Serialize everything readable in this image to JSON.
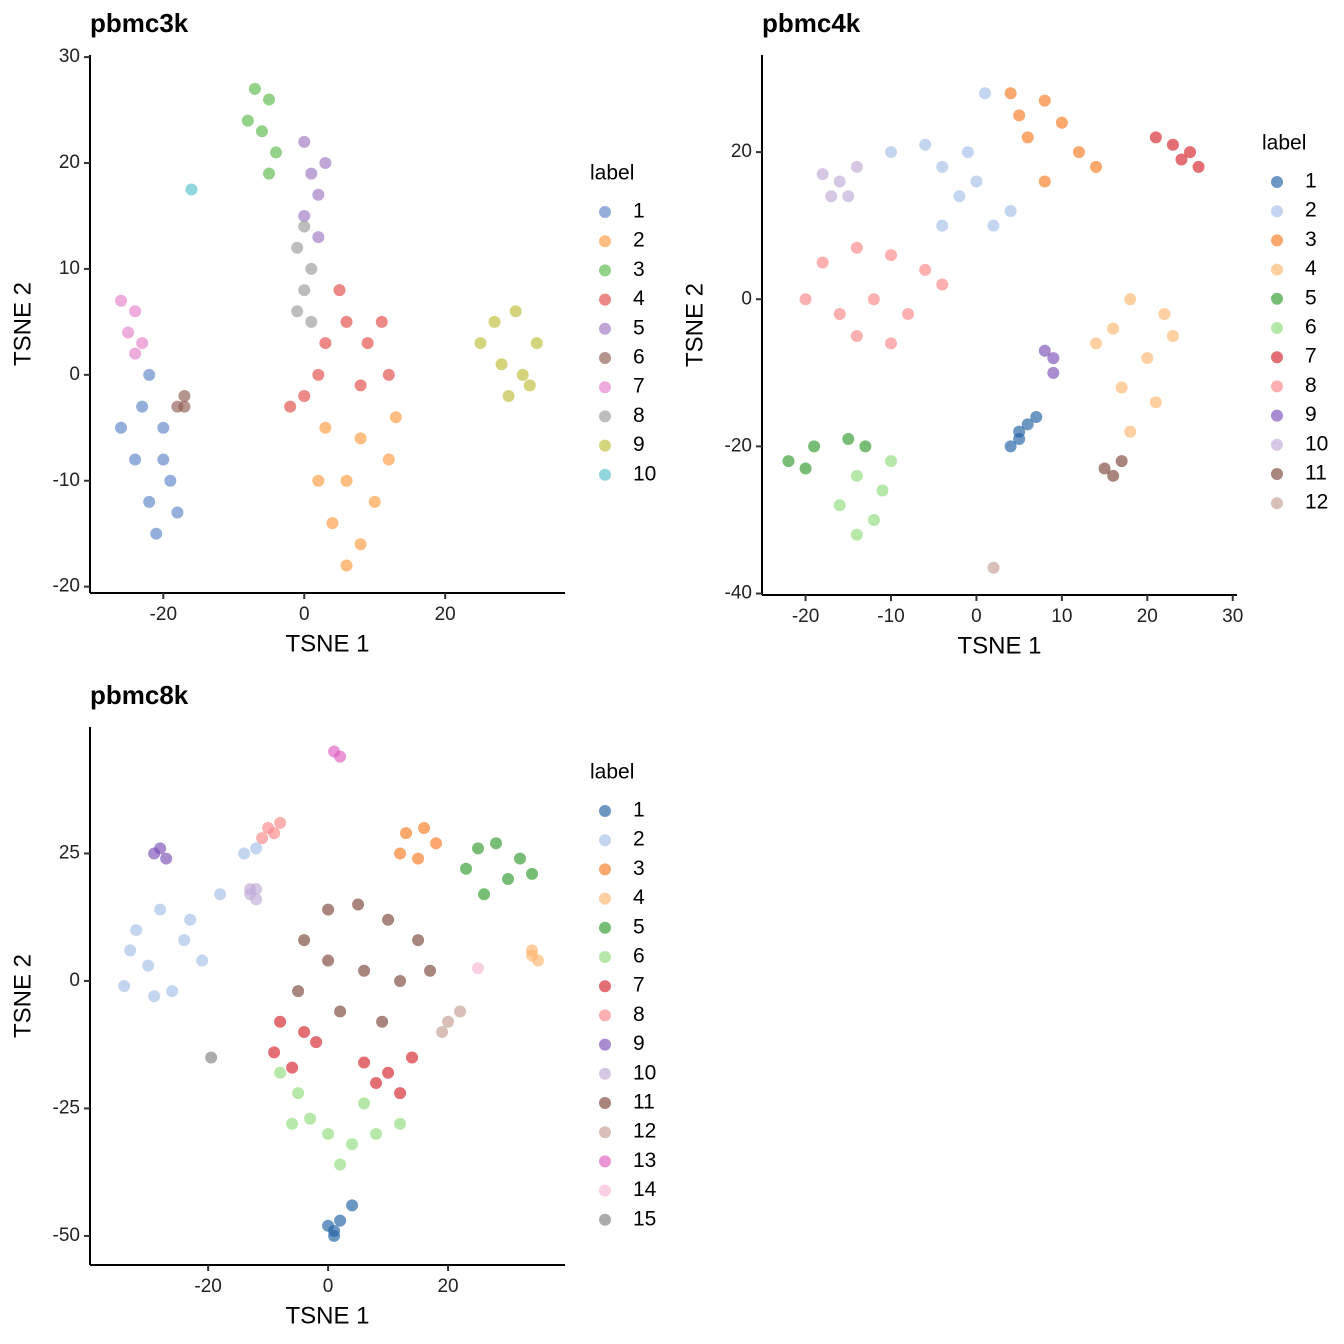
{
  "chart_data": [
    {
      "type": "scatter",
      "title": "pbmc3k",
      "x_label": "TSNE 1",
      "y_label": "TSNE 2",
      "legend_title": "label",
      "xlim": [
        -30.4,
        37.0
      ],
      "ylim": [
        -20.6,
        30.2
      ],
      "xticks": [
        -20,
        0,
        20
      ],
      "yticks": [
        -20,
        -10,
        0,
        10,
        20,
        30
      ],
      "series": [
        {
          "name": "1",
          "color": "#5b84c4",
          "x": [
            -22,
            -23,
            -20,
            -24,
            -19,
            -22,
            -21,
            -18,
            -26,
            -20
          ],
          "y": [
            0,
            -3,
            -5,
            -8,
            -10,
            -12,
            -15,
            -13,
            -5,
            -8
          ]
        },
        {
          "name": "2",
          "color": "#fe9a3e",
          "x": [
            3,
            8,
            12,
            2,
            6,
            10,
            4,
            8,
            6,
            13
          ],
          "y": [
            -5,
            -6,
            -8,
            -10,
            -10,
            -12,
            -14,
            -16,
            -18,
            -4
          ]
        },
        {
          "name": "3",
          "color": "#5bb84a",
          "x": [
            -7,
            -5,
            -8,
            -6,
            -4,
            -5
          ],
          "y": [
            27,
            26,
            24,
            23,
            21,
            19
          ]
        },
        {
          "name": "4",
          "color": "#e24a46",
          "x": [
            0,
            3,
            6,
            9,
            12,
            2,
            8,
            5,
            -2,
            11
          ],
          "y": [
            -2,
            3,
            5,
            3,
            0,
            0,
            -1,
            8,
            -3,
            5
          ]
        },
        {
          "name": "5",
          "color": "#9e77c2",
          "x": [
            0,
            1,
            2,
            0,
            2,
            3
          ],
          "y": [
            22,
            19,
            17,
            15,
            13,
            20
          ]
        },
        {
          "name": "6",
          "color": "#8d5c52",
          "x": [
            -17,
            -17,
            -18
          ],
          "y": [
            -3,
            -2,
            -3
          ]
        },
        {
          "name": "7",
          "color": "#e47fc9",
          "x": [
            -26,
            -24,
            -25,
            -23,
            -24
          ],
          "y": [
            7,
            6,
            4,
            3,
            2
          ]
        },
        {
          "name": "8",
          "color": "#9a9a9a",
          "x": [
            0,
            -1,
            1,
            0,
            -1,
            1
          ],
          "y": [
            14,
            12,
            10,
            8,
            6,
            5
          ]
        },
        {
          "name": "9",
          "color": "#bdbd35",
          "x": [
            27,
            30,
            33,
            28,
            31,
            29,
            25,
            32
          ],
          "y": [
            5,
            6,
            3,
            1,
            0,
            -2,
            3,
            -1
          ]
        },
        {
          "name": "10",
          "color": "#56c0cc",
          "x": [
            -16
          ],
          "y": [
            17.5
          ]
        }
      ]
    },
    {
      "type": "scatter",
      "title": "pbmc4k",
      "x_label": "TSNE 1",
      "y_label": "TSNE 2",
      "legend_title": "label",
      "xlim": [
        -25.1,
        30.5
      ],
      "ylim": [
        -40.2,
        33.2
      ],
      "xticks": [
        -20,
        -10,
        0,
        10,
        20,
        30
      ],
      "yticks": [
        -40,
        -20,
        0,
        20
      ],
      "series": [
        {
          "name": "1",
          "color": "#1f5fa3",
          "x": [
            4,
            5,
            6,
            7,
            5
          ],
          "y": [
            -20,
            -18,
            -17,
            -16,
            -19
          ]
        },
        {
          "name": "2",
          "color": "#a3bfe6",
          "x": [
            -10,
            -6,
            -4,
            -2,
            0,
            2,
            -4,
            -1,
            4,
            1
          ],
          "y": [
            20,
            21,
            18,
            14,
            16,
            10,
            10,
            20,
            12,
            28
          ]
        },
        {
          "name": "3",
          "color": "#f77a1f",
          "x": [
            4,
            8,
            10,
            6,
            12,
            14,
            8,
            5
          ],
          "y": [
            28,
            27,
            24,
            22,
            20,
            18,
            16,
            25
          ]
        },
        {
          "name": "4",
          "color": "#fdb56f",
          "x": [
            18,
            22,
            16,
            20,
            17,
            21,
            18,
            14,
            23
          ],
          "y": [
            0,
            -2,
            -4,
            -8,
            -12,
            -14,
            -18,
            -6,
            -5
          ]
        },
        {
          "name": "5",
          "color": "#2f9a2b",
          "x": [
            -22,
            -19,
            -15,
            -13,
            -20
          ],
          "y": [
            -22,
            -20,
            -19,
            -20,
            -23
          ]
        },
        {
          "name": "6",
          "color": "#8fdc7b",
          "x": [
            -14,
            -11,
            -16,
            -12,
            -14,
            -10
          ],
          "y": [
            -24,
            -26,
            -28,
            -30,
            -32,
            -22
          ]
        },
        {
          "name": "7",
          "color": "#d42029",
          "x": [
            21,
            23,
            25,
            26,
            24
          ],
          "y": [
            22,
            21,
            20,
            18,
            19
          ]
        },
        {
          "name": "8",
          "color": "#fb8585",
          "x": [
            -18,
            -14,
            -10,
            -6,
            -20,
            -16,
            -12,
            -8,
            -14,
            -10,
            -4
          ],
          "y": [
            5,
            7,
            6,
            4,
            0,
            -2,
            0,
            -2,
            -5,
            -6,
            2
          ]
        },
        {
          "name": "9",
          "color": "#7b4db5",
          "x": [
            8,
            9,
            9
          ],
          "y": [
            -7,
            -8,
            -10
          ]
        },
        {
          "name": "10",
          "color": "#c0abd6",
          "x": [
            -18,
            -16,
            -15,
            -17,
            -14
          ],
          "y": [
            17,
            16,
            14,
            14,
            18
          ]
        },
        {
          "name": "11",
          "color": "#7a4338",
          "x": [
            15,
            17,
            16
          ],
          "y": [
            -23,
            -22,
            -24
          ]
        },
        {
          "name": "12",
          "color": "#c39c91",
          "x": [
            2
          ],
          "y": [
            -36.5
          ]
        }
      ]
    },
    {
      "type": "scatter",
      "title": "pbmc8k",
      "x_label": "TSNE 1",
      "y_label": "TSNE 2",
      "legend_title": "label",
      "xlim": [
        -39.7,
        39.5
      ],
      "ylim": [
        -55.7,
        49.8
      ],
      "xticks": [
        -20,
        0,
        20
      ],
      "yticks": [
        -50,
        -25,
        0,
        25
      ],
      "series": [
        {
          "name": "1",
          "color": "#1f5fa3",
          "x": [
            1,
            0,
            2,
            4,
            1
          ],
          "y": [
            -50,
            -48,
            -47,
            -44,
            -49
          ]
        },
        {
          "name": "2",
          "color": "#a3bfe6",
          "x": [
            -32,
            -28,
            -24,
            -30,
            -34,
            -26,
            -21,
            -29,
            -23,
            -33,
            -14,
            -12,
            -18
          ],
          "y": [
            10,
            14,
            8,
            3,
            -1,
            -2,
            4,
            -3,
            12,
            6,
            25,
            26,
            17
          ]
        },
        {
          "name": "3",
          "color": "#f77a1f",
          "x": [
            13,
            16,
            18,
            12,
            15
          ],
          "y": [
            29,
            30,
            27,
            25,
            24
          ]
        },
        {
          "name": "4",
          "color": "#fdb56f",
          "x": [
            34,
            35,
            34
          ],
          "y": [
            6,
            4,
            5
          ]
        },
        {
          "name": "5",
          "color": "#2f9a2b",
          "x": [
            25,
            28,
            32,
            34,
            30,
            26,
            23
          ],
          "y": [
            26,
            27,
            24,
            21,
            20,
            17,
            22
          ]
        },
        {
          "name": "6",
          "color": "#8fdc7b",
          "x": [
            -8,
            -5,
            -3,
            0,
            4,
            8,
            12,
            -6,
            2,
            6
          ],
          "y": [
            -18,
            -22,
            -27,
            -30,
            -32,
            -30,
            -28,
            -28,
            -36,
            -24
          ]
        },
        {
          "name": "7",
          "color": "#d42029",
          "x": [
            -8,
            -4,
            -9,
            -6,
            -2,
            6,
            10,
            14,
            12,
            8
          ],
          "y": [
            -8,
            -10,
            -14,
            -17,
            -12,
            -16,
            -18,
            -15,
            -22,
            -20
          ]
        },
        {
          "name": "8",
          "color": "#fb8585",
          "x": [
            -10,
            -9,
            -8,
            -11
          ],
          "y": [
            30,
            29,
            31,
            28
          ]
        },
        {
          "name": "9",
          "color": "#7b4db5",
          "x": [
            -29,
            -28,
            -27
          ],
          "y": [
            25,
            26,
            24
          ]
        },
        {
          "name": "10",
          "color": "#c0abd6",
          "x": [
            -13,
            -12,
            -13,
            -12
          ],
          "y": [
            17,
            16,
            18,
            18
          ]
        },
        {
          "name": "11",
          "color": "#7a4338",
          "x": [
            0,
            5,
            10,
            15,
            -4,
            0,
            6,
            12,
            -5,
            2,
            9,
            17
          ],
          "y": [
            14,
            15,
            12,
            8,
            8,
            4,
            2,
            0,
            -2,
            -6,
            -8,
            2
          ]
        },
        {
          "name": "12",
          "color": "#c39c91",
          "x": [
            20,
            22,
            19
          ],
          "y": [
            -8,
            -6,
            -10
          ]
        },
        {
          "name": "13",
          "color": "#df5ec0",
          "x": [
            1,
            2
          ],
          "y": [
            45,
            44
          ]
        },
        {
          "name": "14",
          "color": "#f7b6d2",
          "x": [
            25
          ],
          "y": [
            2.5
          ]
        },
        {
          "name": "15",
          "color": "#7f7f7f",
          "x": [
            -19.5
          ],
          "y": [
            -15
          ]
        }
      ]
    }
  ]
}
